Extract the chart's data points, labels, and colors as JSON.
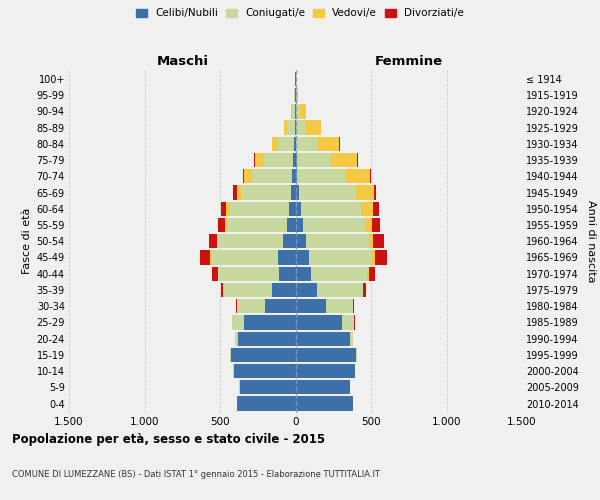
{
  "age_groups": [
    "0-4",
    "5-9",
    "10-14",
    "15-19",
    "20-24",
    "25-29",
    "30-34",
    "35-39",
    "40-44",
    "45-49",
    "50-54",
    "55-59",
    "60-64",
    "65-69",
    "70-74",
    "75-79",
    "80-84",
    "85-89",
    "90-94",
    "95-99",
    "100+"
  ],
  "birth_years": [
    "2010-2014",
    "2005-2009",
    "2000-2004",
    "1995-1999",
    "1990-1994",
    "1985-1989",
    "1980-1984",
    "1975-1979",
    "1970-1974",
    "1965-1969",
    "1960-1964",
    "1955-1959",
    "1950-1954",
    "1945-1949",
    "1940-1944",
    "1935-1939",
    "1930-1934",
    "1925-1929",
    "1920-1924",
    "1915-1919",
    "≤ 1914"
  ],
  "males": {
    "celibe": [
      390,
      370,
      410,
      430,
      380,
      340,
      200,
      155,
      110,
      115,
      80,
      55,
      45,
      28,
      20,
      15,
      8,
      5,
      3,
      2,
      2
    ],
    "coniugato": [
      0,
      1,
      2,
      5,
      20,
      80,
      185,
      320,
      400,
      440,
      430,
      400,
      390,
      330,
      270,
      195,
      105,
      50,
      18,
      5,
      2
    ],
    "vedovo": [
      0,
      0,
      0,
      0,
      0,
      0,
      1,
      2,
      5,
      8,
      10,
      14,
      22,
      32,
      48,
      55,
      40,
      20,
      8,
      2,
      0
    ],
    "divorziato": [
      0,
      0,
      0,
      0,
      1,
      2,
      8,
      18,
      35,
      70,
      52,
      42,
      35,
      25,
      10,
      8,
      5,
      2,
      1,
      0,
      0
    ]
  },
  "females": {
    "nubile": [
      380,
      360,
      395,
      400,
      360,
      310,
      200,
      145,
      100,
      90,
      70,
      50,
      35,
      22,
      12,
      8,
      5,
      3,
      2,
      1,
      1
    ],
    "coniugata": [
      0,
      1,
      2,
      5,
      20,
      78,
      178,
      300,
      375,
      415,
      415,
      410,
      400,
      378,
      320,
      230,
      135,
      65,
      28,
      7,
      2
    ],
    "vedova": [
      0,
      0,
      0,
      0,
      0,
      1,
      2,
      5,
      10,
      20,
      30,
      45,
      80,
      118,
      160,
      170,
      148,
      100,
      40,
      10,
      3
    ],
    "divorziata": [
      0,
      0,
      0,
      0,
      1,
      3,
      8,
      20,
      40,
      80,
      70,
      55,
      40,
      15,
      10,
      8,
      5,
      2,
      1,
      0,
      0
    ]
  },
  "colors": {
    "celibe": "#3d6fa8",
    "coniugato": "#c8d9a0",
    "vedovo": "#f5c842",
    "divorziato": "#cc1111"
  },
  "xlim": 1500,
  "xticks": [
    -1500,
    -1000,
    -500,
    0,
    500,
    1000,
    1500
  ],
  "xticklabels": [
    "1.500",
    "1.000",
    "500",
    "0",
    "500",
    "1.000",
    "1.500"
  ],
  "title": "Popolazione per età, sesso e stato civile - 2015",
  "subtitle": "COMUNE DI LUMEZZANE (BS) - Dati ISTAT 1° gennaio 2015 - Elaborazione TUTTITALIA.IT",
  "ylabel_left": "Fasce di età",
  "ylabel_right": "Anni di nascita",
  "legend_labels": [
    "Celibi/Nubili",
    "Coniugati/e",
    "Vedovi/e",
    "Divorziati/e"
  ],
  "background_color": "#f0f0f0",
  "grid_color": "#cccccc"
}
